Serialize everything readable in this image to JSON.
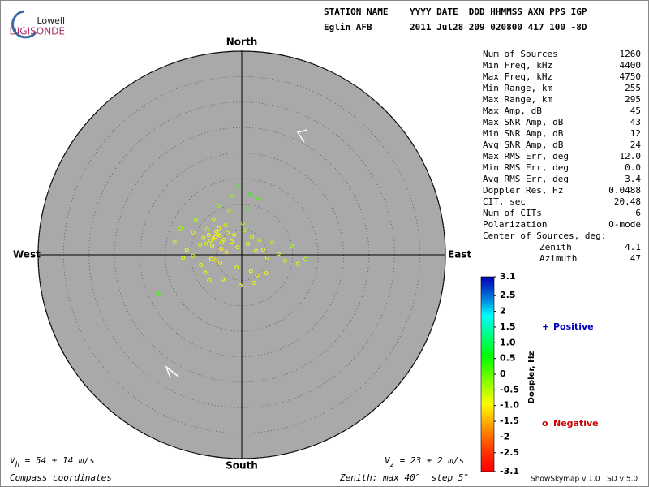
{
  "header": {
    "logo_top": "Lowell",
    "logo_bottom": "DIGISONDE",
    "line1": "STATION NAME    YYYY DATE  DDD HHMMSS AXN PPS IGP",
    "line2": "Eglin AFB       2011 Jul28 209 020800 417 100 -8D"
  },
  "stats": {
    "rows": [
      [
        "Num of Sources",
        "1260"
      ],
      [
        "Min Freq, kHz",
        "4400"
      ],
      [
        "Max Freq, kHz",
        "4750"
      ],
      [
        "Min Range, km",
        "255"
      ],
      [
        "Max Range, km",
        "295"
      ],
      [
        "Max Amp, dB",
        "45"
      ],
      [
        "Max SNR Amp, dB",
        "43"
      ],
      [
        "Min SNR Amp, dB",
        "12"
      ],
      [
        "Avg SNR Amp, dB",
        "24"
      ],
      [
        "Max RMS Err, deg",
        "12.0"
      ],
      [
        "Min RMS Err, deg",
        "0.0"
      ],
      [
        "Avg RMS Err, deg",
        "3.4"
      ],
      [
        "Doppler Res, Hz",
        "0.0488"
      ],
      [
        "CIT, sec",
        "20.48"
      ],
      [
        "Num of CITs",
        "6"
      ],
      [
        "Polarization",
        "O-mode"
      ]
    ],
    "center_title": "Center of Sources, deg:",
    "center_rows": [
      [
        "Zenith",
        "4.1"
      ],
      [
        "Azimuth",
        "47"
      ]
    ]
  },
  "footer": {
    "vh_symbol": "V",
    "vh_sub": "h",
    "vh_text": " = 54 ± 14 m/s",
    "vz_symbol": "V",
    "vz_sub": "z",
    "vz_text": " = 23 ± 2 m/s",
    "coords": "Compass coordinates",
    "zenith": "Zenith: max 40°  step 5°",
    "version": "ShowSkymap v 1.0   SD v 5.0"
  },
  "chart_data": {
    "type": "scatter",
    "directions": {
      "north": "North",
      "south": "South",
      "east": "East",
      "west": "West"
    },
    "rlim": [
      0,
      40
    ],
    "rticks": [
      5,
      10,
      15,
      20,
      25,
      30,
      35,
      40
    ],
    "colorbar": {
      "label": "Doppler, Hz",
      "lim": [
        -3.1,
        3.1
      ],
      "ticks": [
        3.1,
        2.5,
        2,
        1.5,
        {
          "value": 1,
          "label": "1.0"
        },
        0.5,
        0,
        -0.5,
        {
          "value": -1,
          "label": "-1.0"
        },
        -1.5,
        -2,
        -2.5,
        -3.1
      ]
    },
    "series": [
      {
        "name": "Positive",
        "marker": "+",
        "color": "#0000c0",
        "x": [
          -0.6,
          3.2,
          1.6,
          -16.4,
          0.8
        ],
        "y": [
          13.4,
          11.0,
          11.8,
          -7.6,
          9.0
        ],
        "values": [
          0.3,
          0.2,
          0.4,
          0.2,
          0.3
        ]
      },
      {
        "name": "Negative",
        "marker": "o",
        "color": "#cc0000",
        "x": [
          -5.2,
          -4.8,
          -5.6,
          -6.1,
          -4.3,
          -3.9,
          -5.0,
          -6.5,
          -7.0,
          -4.5,
          -3.5,
          -2.8,
          -5.8,
          -6.8,
          -7.5,
          -8.2,
          -4.0,
          -3.2,
          -2.0,
          -1.5,
          -0.8,
          0.5,
          1.2,
          2.0,
          2.8,
          3.5,
          4.2,
          5.0,
          6.0,
          7.2,
          8.5,
          9.8,
          11.0,
          12.5,
          -9.5,
          -10.8,
          -12.0,
          -13.2,
          -11.5,
          -9.0,
          -6.0,
          -5.5,
          -4.2,
          -3.0,
          -1.0,
          0.2,
          1.8,
          3.0,
          -2.5,
          -8.0,
          -7.2,
          -6.4,
          -5.1,
          -4.6,
          -3.7,
          -0.3,
          2.4,
          4.8,
          -9.6,
          -1.8
        ],
        "y": [
          3.5,
          4.0,
          3.2,
          2.8,
          3.8,
          2.5,
          4.6,
          3.9,
          2.2,
          5.2,
          3.0,
          4.3,
          1.8,
          5.0,
          3.3,
          2.0,
          1.2,
          5.8,
          2.6,
          3.9,
          1.5,
          4.8,
          2.2,
          3.5,
          0.8,
          2.9,
          1.0,
          -0.5,
          2.4,
          0.2,
          -1.2,
          1.8,
          -1.8,
          -0.8,
          4.4,
          1.0,
          5.2,
          2.5,
          -0.6,
          6.8,
          -0.8,
          7.0,
          -1.5,
          0.5,
          -2.5,
          6.2,
          -3.2,
          -4.0,
          8.5,
          -2.0,
          -3.5,
          -5.0,
          -1.0,
          9.6,
          -4.8,
          -6.0,
          -5.5,
          -3.6,
          -0.2,
          11.5
        ],
        "values": [
          -1.0,
          -0.9,
          -1.1,
          -0.8,
          -1.0,
          -0.7,
          -1.0,
          -0.9,
          -0.6,
          -1.0,
          -1.1,
          -0.8,
          -1.0,
          -0.5,
          -0.9,
          -0.7,
          -1.0,
          -0.6,
          -0.9,
          -1.0,
          -0.8,
          -0.5,
          -0.9,
          -0.7,
          -1.0,
          -0.6,
          -0.8,
          -1.0,
          -0.5,
          -0.9,
          -0.6,
          -0.4,
          -0.8,
          -0.5,
          -0.7,
          -0.9,
          -0.4,
          -0.6,
          -0.8,
          -0.5,
          -1.0,
          -0.7,
          -0.9,
          -1.1,
          -0.8,
          -0.4,
          -0.9,
          -1.0,
          -0.5,
          -0.8,
          -1.0,
          -0.9,
          -1.1,
          -0.3,
          -0.9,
          -1.0,
          -0.8,
          -0.9,
          -0.5,
          -0.3
        ]
      }
    ]
  }
}
